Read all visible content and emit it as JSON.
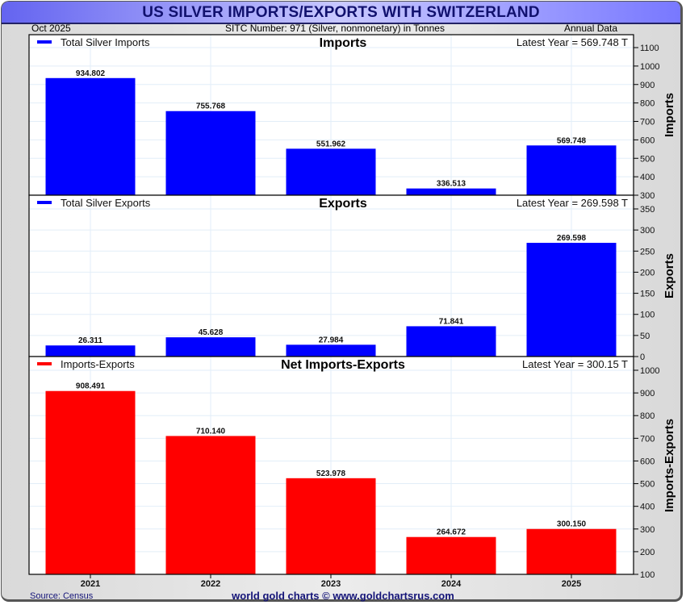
{
  "header": {
    "title": "US SILVER IMPORTS/EXPORTS WITH SWITZERLAND",
    "date": "Oct  2025",
    "subtitle": "SITC Number: 971 (Silver, nonmonetary) in Tonnes",
    "frequency": "Annual Data"
  },
  "footer": {
    "source": "Source: Census",
    "copyright": "world gold charts © www.goldchartsrus.com"
  },
  "chart_data": [
    {
      "type": "bar",
      "title": "Imports",
      "legend": "Total Silver Imports",
      "legend_position": "top-left",
      "latest": "Latest Year = 569.748 T",
      "ylabel": "Imports",
      "color": "#0000ff",
      "categories": [
        "2021",
        "2022",
        "2023",
        "2024",
        "2025"
      ],
      "values": [
        934.802,
        755.768,
        551.962,
        336.513,
        569.748
      ],
      "labels": [
        "934.802",
        "755.768",
        "551.962",
        "336.513",
        "569.748"
      ],
      "ylim": [
        300,
        1100
      ],
      "yticks": [
        300,
        400,
        500,
        600,
        700,
        800,
        900,
        1000,
        1100
      ],
      "grid": true
    },
    {
      "type": "bar",
      "title": "Exports",
      "legend": "Total Silver Exports",
      "legend_position": "top-left",
      "latest": "Latest Year = 269.598 T",
      "ylabel": "Exports",
      "color": "#0000ff",
      "categories": [
        "2021",
        "2022",
        "2023",
        "2024",
        "2025"
      ],
      "values": [
        26.311,
        45.628,
        27.984,
        71.841,
        269.598
      ],
      "labels": [
        "26.311",
        "45.628",
        "27.984",
        "71.841",
        "269.598"
      ],
      "ylim": [
        0,
        380
      ],
      "yticks": [
        0,
        50,
        100,
        150,
        200,
        250,
        300,
        350
      ],
      "grid": true
    },
    {
      "type": "bar",
      "title": "Net Imports-Exports",
      "legend": "Imports-Exports",
      "legend_position": "top-left",
      "latest": "Latest Year = 300.15 T",
      "ylabel": "Imports-Exports",
      "color": "#ff0000",
      "categories": [
        "2021",
        "2022",
        "2023",
        "2024",
        "2025"
      ],
      "values": [
        908.491,
        710.14,
        523.978,
        264.672,
        300.15
      ],
      "labels": [
        "908.491",
        "710.140",
        "523.978",
        "264.672",
        "300.150"
      ],
      "ylim": [
        100,
        1070
      ],
      "yticks": [
        100,
        200,
        300,
        400,
        500,
        600,
        700,
        800,
        900,
        1000
      ],
      "xlabel": "",
      "grid": true
    }
  ]
}
